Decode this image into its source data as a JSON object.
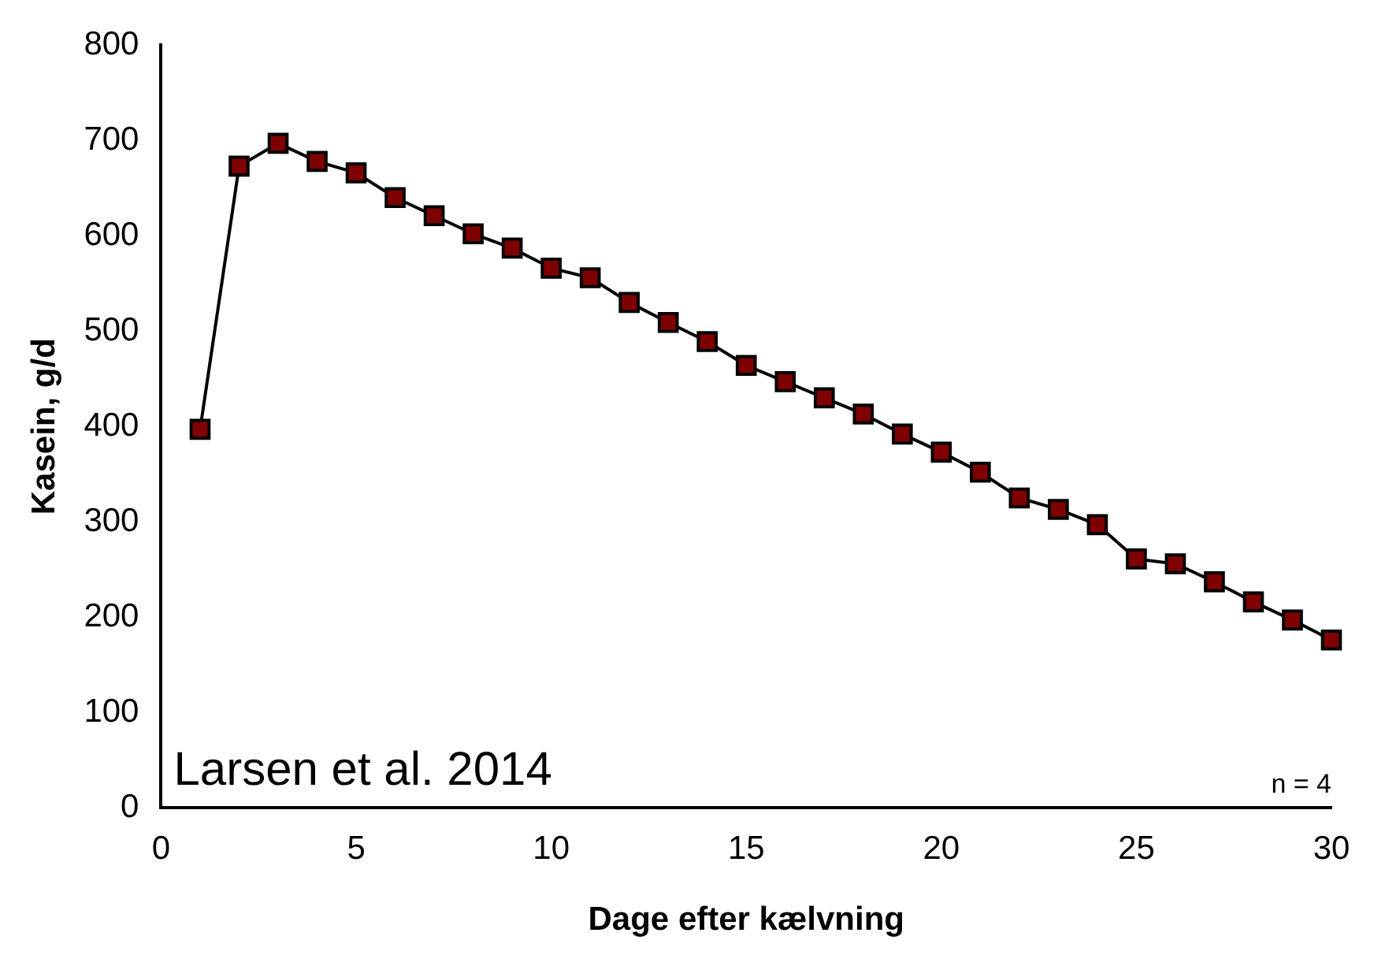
{
  "chart_data": {
    "type": "line",
    "xlabel": "Dage efter kælvning",
    "ylabel": "Kasein, g/d",
    "x": [
      1,
      2,
      3,
      4,
      5,
      6,
      7,
      8,
      9,
      10,
      11,
      12,
      13,
      14,
      15,
      16,
      17,
      18,
      19,
      20,
      21,
      22,
      23,
      24,
      25,
      26,
      27,
      28,
      29,
      30
    ],
    "series": [
      {
        "color": "#7f0000",
        "values": [
          397,
          673,
          697,
          678,
          666,
          640,
          621,
          602,
          587,
          566,
          556,
          530,
          509,
          489,
          464,
          447,
          430,
          413,
          392,
          373,
          352,
          325,
          313,
          297,
          261,
          256,
          237,
          216,
          197,
          176
        ]
      }
    ],
    "xlim": [
      0,
      30
    ],
    "xticks": [
      0,
      5,
      10,
      15,
      20,
      25,
      30
    ],
    "ylim": [
      0,
      800
    ],
    "yticks": [
      0,
      100,
      200,
      300,
      400,
      500,
      600,
      700,
      800
    ],
    "grid": false,
    "legend": false,
    "marker": "square",
    "line_style": "solid",
    "annotations": [
      "Larsen et al. 2014",
      "n = 4"
    ]
  }
}
